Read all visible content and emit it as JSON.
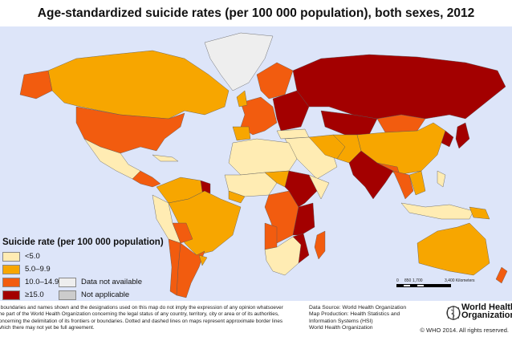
{
  "title": "Age-standardized suicide rates (per 100 000 population), both sexes, 2012",
  "colors": {
    "ocean": "#dde5f9",
    "lt5": "#ffecb3",
    "5to9": "#f7a600",
    "10to15": "#f25c0f",
    "ge15": "#a30000",
    "na": "#eeeeee",
    "notapp": "#cccccc"
  },
  "legend": {
    "title": "Suicide rate (per 100 000 population)",
    "items": [
      {
        "label": "<5.0",
        "color": "#ffecb3"
      },
      {
        "label": "5.0–9.9",
        "color": "#f7a600"
      },
      {
        "label": "10.0–14.9",
        "color": "#f25c0f"
      },
      {
        "label": "≥15.0",
        "color": "#a30000"
      },
      {
        "label": "Data not available",
        "color": "#eeeeee"
      },
      {
        "label": "Not applicable",
        "color": "#cccccc"
      }
    ]
  },
  "scale": {
    "t0": "0",
    "t1": "850",
    "t2": "1,700",
    "t3": "3,400 Kilometers"
  },
  "disclaimer": [
    "The boundaries and names shown and the designations used on this map do not imply the expression of any opinion whatsoever",
    "on the part of the World Health Organization concerning the legal status of any country, territory, city or area or of its authorities,",
    "or concerning the delimitation of its frontiers or boundaries. Dotted and dashed lines on maps represent approximate border lines",
    "for which there may not yet be full agreement."
  ],
  "source": [
    "Data Source: World Health Organization",
    "Map Production: Health Statistics and",
    "Information Systems (HSI)",
    "World Health Organization"
  ],
  "who": {
    "name1": "World Health",
    "name2": "Organization",
    "copyright": "© WHO 2014. All rights reserved."
  }
}
